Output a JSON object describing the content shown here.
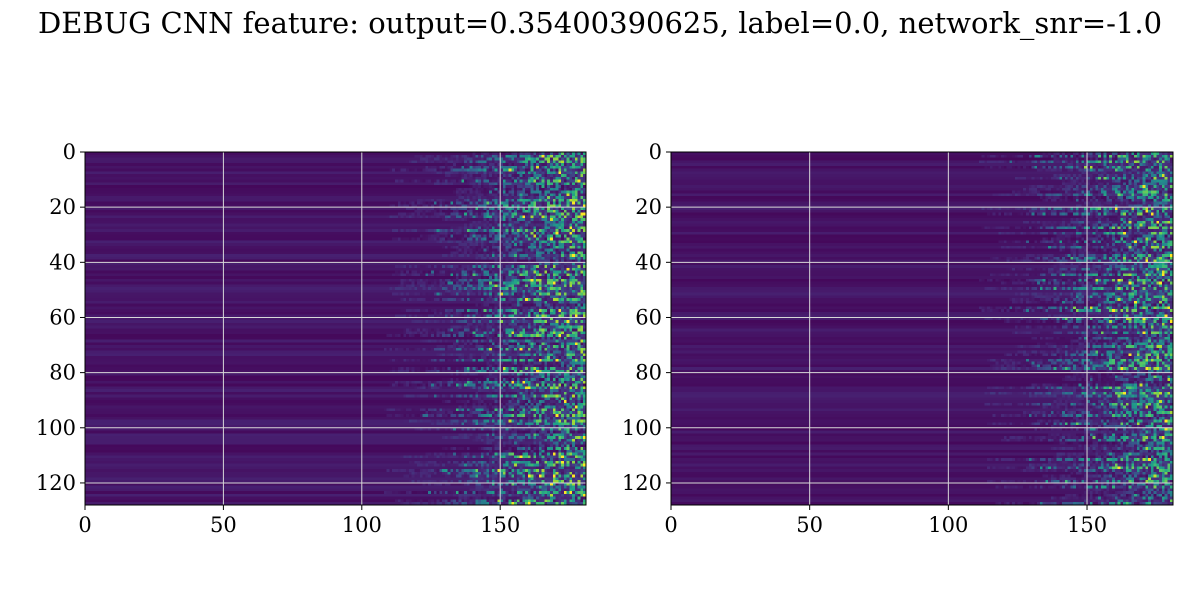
{
  "title": "DEBUG CNN feature: output=0.35400390625, label=0.0, network_snr=-1.0",
  "colors": {
    "background": "#ffffff",
    "grid": "#d8d8d8",
    "axis": "#000000",
    "colormap": [
      "#440154",
      "#482878",
      "#3e4a89",
      "#31688e",
      "#26828e",
      "#1f9e89",
      "#35b779",
      "#6ece58",
      "#b5de2b",
      "#fde725"
    ]
  },
  "chart_data": [
    {
      "type": "heatmap",
      "colormap": "viridis",
      "grid": true,
      "xlim": [
        0,
        181
      ],
      "ylim": [
        128,
        0
      ],
      "x_ticks": [
        "0",
        "50",
        "100",
        "150"
      ],
      "y_ticks": [
        "0",
        "20",
        "40",
        "60",
        "80",
        "100",
        "120"
      ],
      "x_tick_values": [
        0,
        50,
        100,
        150
      ],
      "y_tick_values": [
        0,
        20,
        40,
        60,
        80,
        100,
        120
      ],
      "shape": [
        128,
        181
      ],
      "intensity_onset_column": 125,
      "seed": 17
    },
    {
      "type": "heatmap",
      "colormap": "viridis",
      "grid": true,
      "xlim": [
        0,
        181
      ],
      "ylim": [
        128,
        0
      ],
      "x_ticks": [
        "0",
        "50",
        "100",
        "150"
      ],
      "y_ticks": [
        "0",
        "20",
        "40",
        "60",
        "80",
        "100",
        "120"
      ],
      "x_tick_values": [
        0,
        50,
        100,
        150
      ],
      "y_tick_values": [
        0,
        20,
        40,
        60,
        80,
        100,
        120
      ],
      "shape": [
        128,
        181
      ],
      "intensity_onset_column": 128,
      "seed": 91
    }
  ]
}
